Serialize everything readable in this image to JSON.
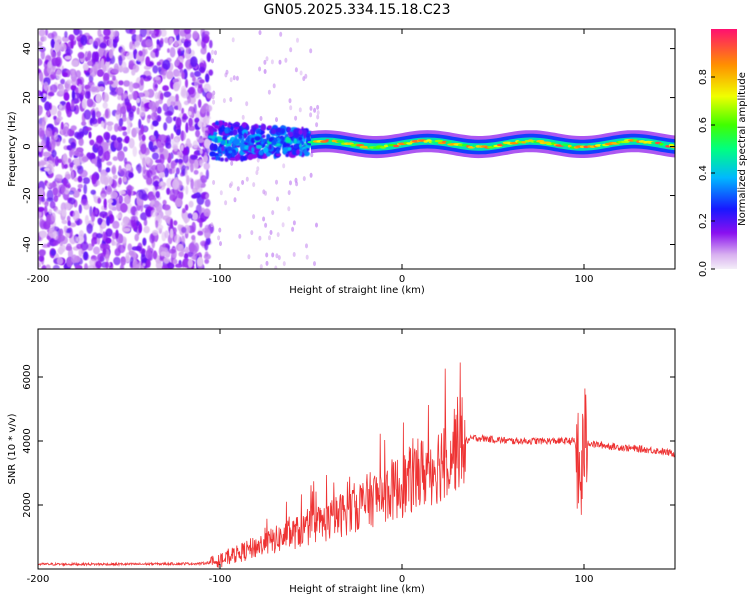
{
  "title": "GN05.2025.334.15.18.C23",
  "chart_data": [
    {
      "type": "heatmap",
      "title": "GN05.2025.334.15.18.C23",
      "xlabel": "Height of straight line (km)",
      "ylabel": "Frequency (Hz)",
      "xlim": [
        -200,
        150
      ],
      "ylim": [
        -50,
        48
      ],
      "xticks": [
        -200,
        -100,
        0,
        100
      ],
      "yticks": [
        -40,
        -20,
        0,
        20,
        40
      ],
      "colorbar": {
        "label": "Normalized spectral amplitude",
        "range": [
          0,
          1
        ],
        "ticks": [
          0.0,
          0.2,
          0.4,
          0.6,
          0.8
        ],
        "colors": [
          "#f0f0f0",
          "#d0a0f0",
          "#7a00ff",
          "#0000ff",
          "#00d0ff",
          "#00ff60",
          "#ffff00",
          "#ff8000",
          "#ff0000"
        ]
      },
      "regions": [
        {
          "x_range": [
            -200,
            -105
          ],
          "description": "scattered low-amplitude noise across all frequencies",
          "amplitude": 0.15
        },
        {
          "x_range": [
            -105,
            -50
          ],
          "center_frequency": 2,
          "bandwidth": 10,
          "amplitude": 0.4
        },
        {
          "x_range": [
            -50,
            150
          ],
          "center_frequency": 1,
          "bandwidth": 6,
          "amplitude": 0.9
        }
      ]
    },
    {
      "type": "line",
      "xlabel": "Height of straight line (km)",
      "ylabel": "SNR (10 * v/v)",
      "xlim": [
        -200,
        150
      ],
      "ylim": [
        0,
        7500
      ],
      "xticks": [
        -200,
        -100,
        0,
        100
      ],
      "yticks": [
        2000,
        4000,
        6000
      ],
      "color": "#ee3333",
      "x": [
        -200,
        -150,
        -110,
        -100,
        -80,
        -60,
        -40,
        -20,
        0,
        20,
        30,
        40,
        60,
        80,
        95,
        98,
        100,
        105,
        120,
        140,
        150
      ],
      "y": [
        150,
        150,
        170,
        250,
        700,
        1100,
        1500,
        2100,
        2600,
        3300,
        3900,
        4100,
        4000,
        4000,
        4000,
        2500,
        4000,
        3900,
        3800,
        3700,
        3600
      ]
    }
  ]
}
